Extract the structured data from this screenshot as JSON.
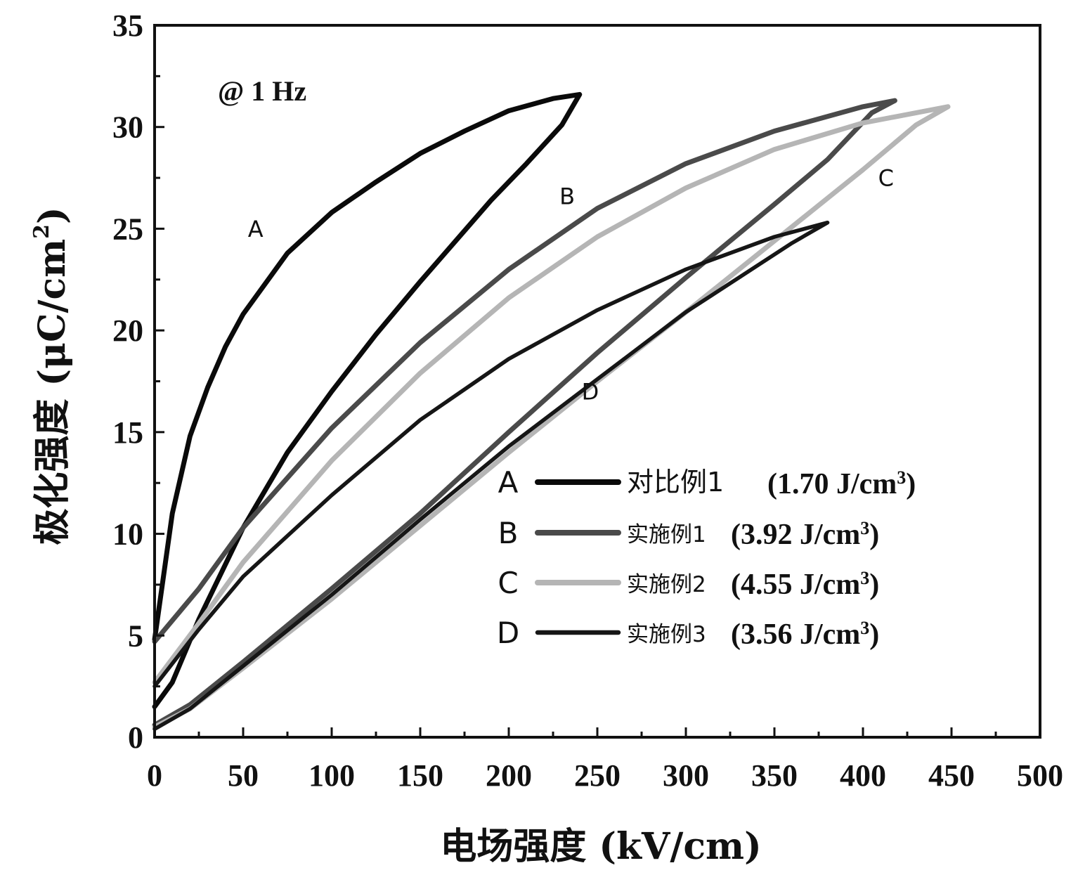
{
  "chart_data": {
    "type": "line",
    "title": "",
    "annotation": "@ 1 Hz",
    "xlabel": "电场强度 (kV/cm)",
    "ylabel": "极化强度 (μC/cm2)",
    "xlim": [
      0,
      500
    ],
    "ylim": [
      0,
      35
    ],
    "xticks": [
      0,
      50,
      100,
      150,
      200,
      250,
      300,
      350,
      400,
      450,
      500
    ],
    "yticks": [
      0,
      5,
      10,
      15,
      20,
      25,
      30,
      35
    ],
    "grid": false,
    "legend_position": "bottom-right",
    "series": [
      {
        "id": "A",
        "name": "对比例1",
        "value": "(1.70 J/cm3)",
        "color": "#0a0a0a",
        "upper": [
          [
            0,
            4.8
          ],
          [
            10,
            11
          ],
          [
            20,
            14.8
          ],
          [
            30,
            17.2
          ],
          [
            40,
            19.2
          ],
          [
            50,
            20.8
          ],
          [
            75,
            23.8
          ],
          [
            100,
            25.8
          ],
          [
            125,
            27.3
          ],
          [
            150,
            28.7
          ],
          [
            175,
            29.8
          ],
          [
            200,
            30.8
          ],
          [
            225,
            31.4
          ],
          [
            240,
            31.6
          ]
        ],
        "lower": [
          [
            240,
            31.6
          ],
          [
            230,
            30.1
          ],
          [
            210,
            28.2
          ],
          [
            190,
            26.4
          ],
          [
            170,
            24.4
          ],
          [
            150,
            22.4
          ],
          [
            125,
            19.8
          ],
          [
            100,
            17.0
          ],
          [
            75,
            14.0
          ],
          [
            50,
            10.3
          ],
          [
            25,
            5.8
          ],
          [
            10,
            2.7
          ],
          [
            0,
            1.5
          ]
        ]
      },
      {
        "id": "B",
        "name": "实施例1",
        "value": "(3.92 J/cm3)",
        "color": "#4a4a4a",
        "upper": [
          [
            0,
            4.7
          ],
          [
            25,
            7.3
          ],
          [
            50,
            10.3
          ],
          [
            100,
            15.2
          ],
          [
            150,
            19.4
          ],
          [
            200,
            23.0
          ],
          [
            250,
            26.0
          ],
          [
            300,
            28.2
          ],
          [
            350,
            29.8
          ],
          [
            400,
            31.0
          ],
          [
            418,
            31.3
          ]
        ],
        "lower": [
          [
            418,
            31.3
          ],
          [
            405,
            30.7
          ],
          [
            380,
            28.4
          ],
          [
            350,
            26.2
          ],
          [
            300,
            22.6
          ],
          [
            250,
            18.9
          ],
          [
            200,
            15.0
          ],
          [
            150,
            11.0
          ],
          [
            100,
            7.3
          ],
          [
            50,
            3.7
          ],
          [
            20,
            1.6
          ],
          [
            0,
            0.6
          ]
        ]
      },
      {
        "id": "C",
        "name": "实施例2",
        "value": "(4.55 J/cm3)",
        "color": "#b5b5b5",
        "upper": [
          [
            0,
            2.7
          ],
          [
            25,
            5.6
          ],
          [
            50,
            8.6
          ],
          [
            100,
            13.6
          ],
          [
            150,
            17.9
          ],
          [
            200,
            21.6
          ],
          [
            250,
            24.6
          ],
          [
            300,
            27.0
          ],
          [
            350,
            28.9
          ],
          [
            400,
            30.2
          ],
          [
            448,
            31.0
          ]
        ],
        "lower": [
          [
            448,
            31.0
          ],
          [
            430,
            30.1
          ],
          [
            400,
            27.9
          ],
          [
            350,
            24.4
          ],
          [
            300,
            20.9
          ],
          [
            250,
            17.5
          ],
          [
            200,
            14.0
          ],
          [
            150,
            10.4
          ],
          [
            100,
            6.8
          ],
          [
            50,
            3.4
          ],
          [
            20,
            1.4
          ],
          [
            0,
            0.5
          ]
        ]
      },
      {
        "id": "D",
        "name": "实施例3",
        "value": "(3.56 J/cm3)",
        "color": "#161616",
        "upper": [
          [
            0,
            2.5
          ],
          [
            25,
            5.3
          ],
          [
            50,
            7.9
          ],
          [
            100,
            11.9
          ],
          [
            150,
            15.6
          ],
          [
            200,
            18.6
          ],
          [
            250,
            21.0
          ],
          [
            300,
            23.0
          ],
          [
            350,
            24.6
          ],
          [
            380,
            25.3
          ]
        ],
        "lower": [
          [
            380,
            25.3
          ],
          [
            360,
            24.3
          ],
          [
            330,
            22.6
          ],
          [
            300,
            20.9
          ],
          [
            250,
            17.6
          ],
          [
            200,
            14.3
          ],
          [
            150,
            10.7
          ],
          [
            100,
            7.0
          ],
          [
            50,
            3.5
          ],
          [
            20,
            1.4
          ],
          [
            0,
            0.4
          ]
        ]
      }
    ],
    "curve_labels": [
      {
        "text": "A",
        "x": 57,
        "y": 24.6
      },
      {
        "text": "B",
        "x": 233,
        "y": 26.2
      },
      {
        "text": "C",
        "x": 413,
        "y": 27.1
      },
      {
        "text": "D",
        "x": 246,
        "y": 16.6
      }
    ]
  }
}
